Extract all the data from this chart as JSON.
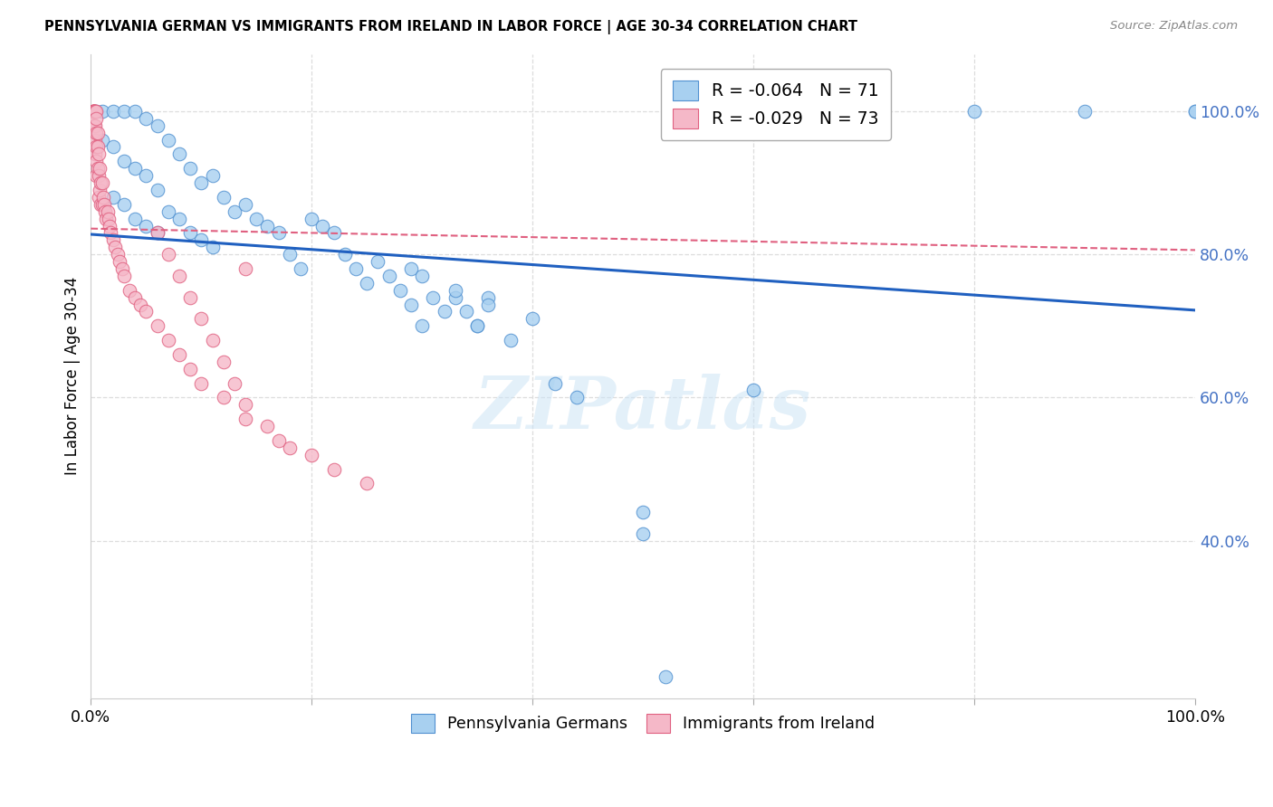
{
  "title": "PENNSYLVANIA GERMAN VS IMMIGRANTS FROM IRELAND IN LABOR FORCE | AGE 30-34 CORRELATION CHART",
  "source": "Source: ZipAtlas.com",
  "ylabel": "In Labor Force | Age 30-34",
  "xlim": [
    0.0,
    1.0
  ],
  "ylim": [
    0.18,
    1.08
  ],
  "yticks": [
    0.4,
    0.6,
    0.8,
    1.0
  ],
  "ytick_labels": [
    "40.0%",
    "60.0%",
    "80.0%",
    "100.0%"
  ],
  "blue_color": "#A8D0F0",
  "pink_color": "#F5B8C8",
  "blue_edge_color": "#5090D0",
  "pink_edge_color": "#E06080",
  "blue_line_color": "#2060C0",
  "pink_line_color": "#E06080",
  "legend_r_blue": "R = -0.064",
  "legend_n_blue": "N = 71",
  "legend_r_pink": "R = -0.029",
  "legend_n_pink": "N = 73",
  "blue_line_y_start": 0.828,
  "blue_line_y_end": 0.722,
  "pink_line_y_start": 0.836,
  "pink_line_y_end": 0.806,
  "blue_scatter_x": [
    0.005,
    0.01,
    0.01,
    0.02,
    0.02,
    0.02,
    0.03,
    0.03,
    0.03,
    0.04,
    0.04,
    0.04,
    0.05,
    0.05,
    0.05,
    0.06,
    0.06,
    0.06,
    0.07,
    0.07,
    0.08,
    0.08,
    0.09,
    0.09,
    0.1,
    0.1,
    0.11,
    0.11,
    0.12,
    0.13,
    0.14,
    0.15,
    0.16,
    0.17,
    0.18,
    0.19,
    0.2,
    0.21,
    0.22,
    0.23,
    0.24,
    0.25,
    0.26,
    0.27,
    0.28,
    0.29,
    0.3,
    0.31,
    0.32,
    0.33,
    0.34,
    0.35,
    0.36,
    0.38,
    0.4,
    0.42,
    0.44,
    0.6,
    0.62,
    0.8,
    0.9,
    1.0,
    1.0,
    0.29,
    0.3,
    0.33,
    0.35,
    0.36,
    0.5,
    0.5,
    0.52
  ],
  "blue_scatter_y": [
    1.0,
    1.0,
    0.96,
    1.0,
    0.95,
    0.88,
    1.0,
    0.93,
    0.87,
    1.0,
    0.92,
    0.85,
    0.99,
    0.91,
    0.84,
    0.98,
    0.89,
    0.83,
    0.96,
    0.86,
    0.94,
    0.85,
    0.92,
    0.83,
    0.9,
    0.82,
    0.91,
    0.81,
    0.88,
    0.86,
    0.87,
    0.85,
    0.84,
    0.83,
    0.8,
    0.78,
    0.85,
    0.84,
    0.83,
    0.8,
    0.78,
    0.76,
    0.79,
    0.77,
    0.75,
    0.78,
    0.77,
    0.74,
    0.72,
    0.74,
    0.72,
    0.7,
    0.74,
    0.68,
    0.71,
    0.62,
    0.6,
    0.61,
    1.0,
    1.0,
    1.0,
    1.0,
    1.0,
    0.73,
    0.7,
    0.75,
    0.7,
    0.73,
    0.44,
    0.41,
    0.21
  ],
  "pink_scatter_x": [
    0.002,
    0.002,
    0.002,
    0.002,
    0.002,
    0.003,
    0.003,
    0.003,
    0.003,
    0.004,
    0.004,
    0.004,
    0.004,
    0.004,
    0.005,
    0.005,
    0.005,
    0.005,
    0.005,
    0.005,
    0.006,
    0.006,
    0.006,
    0.007,
    0.007,
    0.007,
    0.008,
    0.008,
    0.009,
    0.009,
    0.01,
    0.01,
    0.011,
    0.012,
    0.013,
    0.014,
    0.015,
    0.016,
    0.017,
    0.018,
    0.02,
    0.022,
    0.024,
    0.026,
    0.028,
    0.03,
    0.035,
    0.04,
    0.045,
    0.05,
    0.06,
    0.07,
    0.08,
    0.09,
    0.1,
    0.12,
    0.14,
    0.17,
    0.2,
    0.22,
    0.25,
    0.14,
    0.06,
    0.07,
    0.08,
    0.09,
    0.1,
    0.11,
    0.12,
    0.13,
    0.14,
    0.16,
    0.18
  ],
  "pink_scatter_y": [
    1.0,
    1.0,
    1.0,
    1.0,
    1.0,
    1.0,
    1.0,
    1.0,
    0.98,
    1.0,
    1.0,
    0.98,
    0.96,
    0.94,
    1.0,
    0.99,
    0.97,
    0.95,
    0.93,
    0.91,
    0.97,
    0.95,
    0.92,
    0.94,
    0.91,
    0.88,
    0.92,
    0.89,
    0.9,
    0.87,
    0.9,
    0.87,
    0.88,
    0.87,
    0.86,
    0.85,
    0.86,
    0.85,
    0.84,
    0.83,
    0.82,
    0.81,
    0.8,
    0.79,
    0.78,
    0.77,
    0.75,
    0.74,
    0.73,
    0.72,
    0.7,
    0.68,
    0.66,
    0.64,
    0.62,
    0.6,
    0.57,
    0.54,
    0.52,
    0.5,
    0.48,
    0.78,
    0.83,
    0.8,
    0.77,
    0.74,
    0.71,
    0.68,
    0.65,
    0.62,
    0.59,
    0.56,
    0.53
  ]
}
